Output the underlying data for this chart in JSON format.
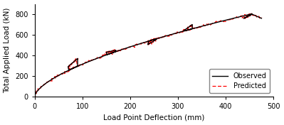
{
  "xlabel": "Load Point Deflection (mm)",
  "ylabel": "Total Applied Load (kN)",
  "xlim": [
    0,
    500
  ],
  "ylim": [
    0,
    900
  ],
  "xticks": [
    0,
    100,
    200,
    300,
    400,
    500
  ],
  "yticks": [
    0,
    200,
    400,
    600,
    800
  ],
  "observed_color": "#000000",
  "predicted_color": "#ff0000",
  "legend_labels": [
    "Observed",
    "Predicted"
  ],
  "background_color": "#ffffff",
  "font_size": 7,
  "label_font_size": 7.5,
  "backbone_a": 820,
  "backbone_b": 0.62,
  "backbone_xmax": 470,
  "cycles": [
    {
      "x_peak": 90,
      "y_peak": 370,
      "x_unload": 70,
      "y_unload": 290
    },
    {
      "x_peak": 170,
      "y_peak": 450,
      "x_unload": 150,
      "y_unload": 430
    },
    {
      "x_peak": 255,
      "y_peak": 555,
      "x_unload": 237,
      "y_unload": 505
    },
    {
      "x_peak": 330,
      "y_peak": 700,
      "x_unload": 312,
      "y_unload": 640
    },
    {
      "x_peak": 455,
      "y_peak": 800,
      "x_unload": 438,
      "y_unload": 760
    }
  ],
  "final_drop_x": 475,
  "final_drop_y": 760
}
